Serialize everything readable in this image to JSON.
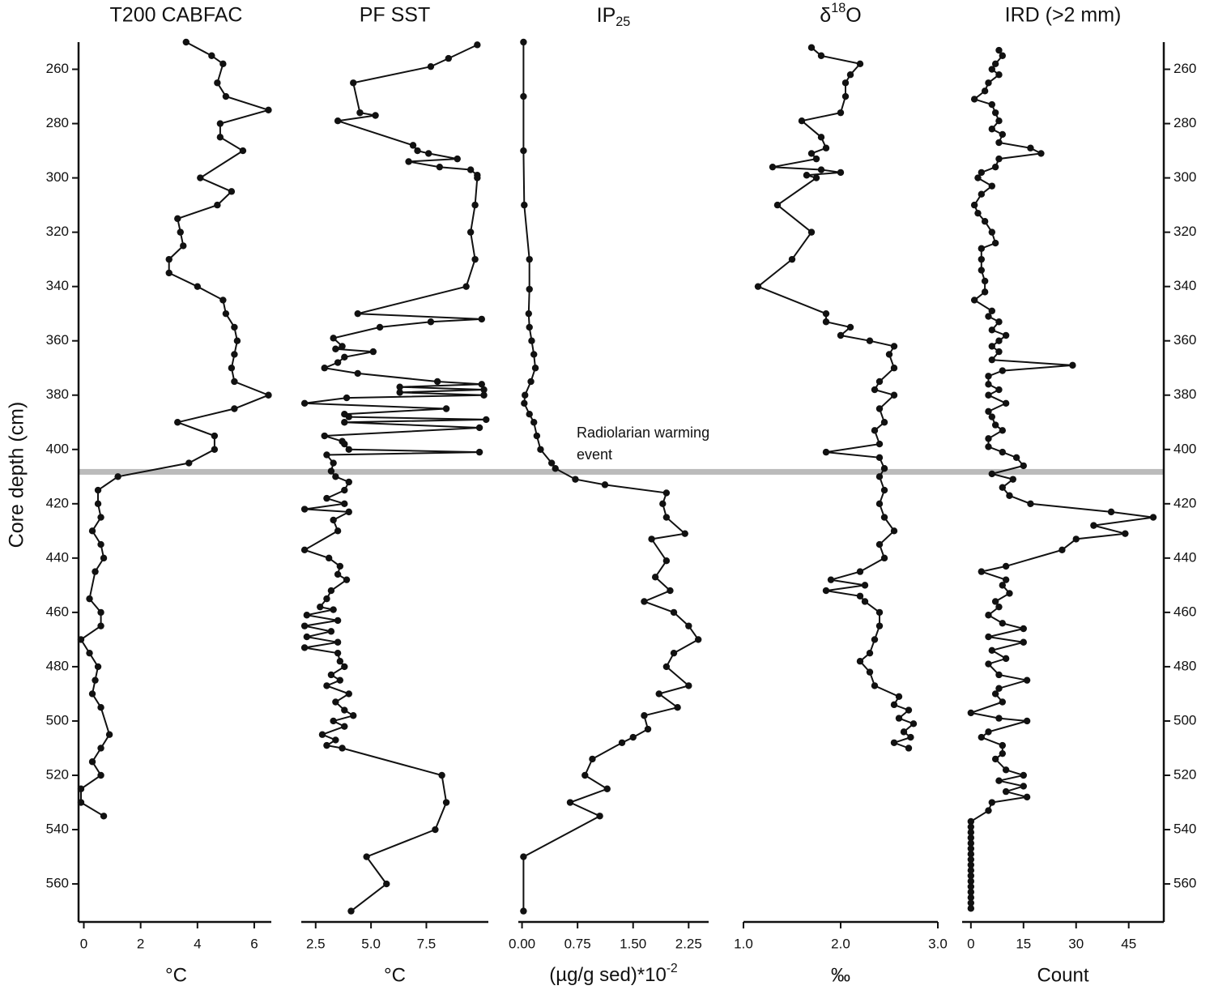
{
  "depth_axis": {
    "label": "Core depth (cm)",
    "ylim": [
      250,
      574
    ],
    "yticks": [
      260,
      280,
      300,
      320,
      340,
      360,
      380,
      400,
      420,
      440,
      460,
      480,
      500,
      520,
      540,
      560
    ]
  },
  "annotation": {
    "text": [
      "Radiolarian warming",
      "event"
    ],
    "band": [
      407.2,
      409.3
    ],
    "color": "#bbbbbb"
  },
  "chart_data": [
    {
      "type": "line",
      "title": "T200 CABFAC",
      "xlabel": "°C",
      "color": "#111111",
      "xlim": [
        -0.1,
        6.6
      ],
      "xticks": [
        0,
        2,
        4,
        6
      ],
      "depth": [
        250,
        255,
        258,
        265,
        270,
        275,
        280,
        285,
        290,
        300,
        305,
        310,
        315,
        320,
        325,
        330,
        335,
        340,
        345,
        350,
        355,
        360,
        365,
        370,
        375,
        380,
        385,
        390,
        395,
        400,
        405,
        410,
        415,
        420,
        425,
        430,
        435,
        440,
        445,
        455,
        460,
        465,
        470,
        475,
        480,
        485,
        490,
        495,
        505,
        510,
        515,
        520,
        525,
        530,
        535
      ],
      "values": [
        3.6,
        4.5,
        4.9,
        4.7,
        5.0,
        6.5,
        4.8,
        4.8,
        5.6,
        4.1,
        5.2,
        4.7,
        3.3,
        3.4,
        3.5,
        3.0,
        3.0,
        4.0,
        4.9,
        5.0,
        5.3,
        5.4,
        5.3,
        5.2,
        5.3,
        6.5,
        5.3,
        3.3,
        4.6,
        4.6,
        3.7,
        1.2,
        0.5,
        0.5,
        0.6,
        0.3,
        0.6,
        0.7,
        0.4,
        0.2,
        0.6,
        0.6,
        -0.1,
        0.2,
        0.5,
        0.4,
        0.3,
        0.6,
        0.9,
        0.6,
        0.3,
        0.6,
        -0.1,
        -0.1,
        0.7
      ]
    },
    {
      "type": "line",
      "title": "PF SST",
      "xlabel": "°C",
      "color": "#111111",
      "xlim": [
        1.85,
        10.3
      ],
      "xticks": [
        2.5,
        {
          "value": 5,
          "label": "5.0"
        },
        7.5
      ],
      "depth": [
        251,
        256,
        259,
        265,
        276,
        277,
        279,
        288,
        290,
        291,
        293,
        294,
        296,
        297,
        299,
        300,
        310,
        320,
        330,
        340,
        350,
        352,
        353,
        355,
        359,
        362,
        363,
        364,
        366,
        368,
        370,
        372,
        375,
        376,
        377,
        378,
        379,
        380,
        381,
        383,
        385,
        387,
        388,
        389,
        390,
        392,
        395,
        397,
        398,
        400,
        401,
        402,
        405,
        408,
        410,
        412,
        415,
        418,
        420,
        422,
        423,
        426,
        430,
        437,
        440,
        443,
        446,
        448,
        452,
        455,
        458,
        459,
        461,
        463,
        465,
        467,
        469,
        471,
        473,
        475,
        478,
        480,
        483,
        485,
        487,
        490,
        493,
        496,
        498,
        500,
        502,
        505,
        507,
        509,
        510,
        520,
        530,
        540,
        550,
        560,
        570
      ],
      "values": [
        9.8,
        8.5,
        7.7,
        4.2,
        4.5,
        5.2,
        3.5,
        6.9,
        7.1,
        7.6,
        8.9,
        6.7,
        8.1,
        9.5,
        9.8,
        9.8,
        9.7,
        9.5,
        9.7,
        9.3,
        4.4,
        10.0,
        7.7,
        5.4,
        3.3,
        3.7,
        3.4,
        5.1,
        3.8,
        3.5,
        2.9,
        4.4,
        8.0,
        10.0,
        6.3,
        10.1,
        6.3,
        10.1,
        3.9,
        2.0,
        8.4,
        3.8,
        4.0,
        10.2,
        3.8,
        9.9,
        2.9,
        3.7,
        3.8,
        4.0,
        9.9,
        3.0,
        3.3,
        3.2,
        3.4,
        4.0,
        3.8,
        3.0,
        3.8,
        2.0,
        4.0,
        3.3,
        3.5,
        2.0,
        3.1,
        3.6,
        3.5,
        3.9,
        3.2,
        3.0,
        2.7,
        3.3,
        2.1,
        3.5,
        2.0,
        3.2,
        2.1,
        3.5,
        2.0,
        3.5,
        3.6,
        3.8,
        3.2,
        3.6,
        3.0,
        4.0,
        3.4,
        3.8,
        4.2,
        3.3,
        3.8,
        2.8,
        3.4,
        3.0,
        3.7,
        8.2,
        8.4,
        7.9,
        4.8,
        5.7,
        4.1
      ]
    },
    {
      "type": "line",
      "title": [
        {
          "text": "IP"
        },
        {
          "text": "25",
          "shift": "sub"
        }
      ],
      "xlabel": [
        {
          "text": "(µg/g sed)*10"
        },
        {
          "text": "-2",
          "shift": "sup"
        }
      ],
      "color": "#111111",
      "xlim": [
        -0.05,
        2.52
      ],
      "xticks": [
        {
          "value": 0,
          "label": "0.00"
        },
        {
          "value": 0.75,
          "label": "0.75"
        },
        {
          "value": 1.5,
          "label": "1.50"
        },
        {
          "value": 2.25,
          "label": "2.25"
        }
      ],
      "depth": [
        250,
        270,
        290,
        310,
        330,
        341,
        350,
        355,
        360,
        365,
        370,
        375,
        380,
        383,
        387,
        390,
        395,
        400,
        405,
        407,
        411,
        413,
        416,
        420,
        425,
        431,
        433,
        441,
        447,
        452,
        456,
        460,
        465,
        470,
        475,
        480,
        487,
        490,
        495,
        498,
        503,
        506,
        508,
        514,
        520,
        525,
        530,
        535,
        550,
        570
      ],
      "values": [
        0.02,
        0.02,
        0.02,
        0.03,
        0.1,
        0.1,
        0.09,
        0.1,
        0.13,
        0.16,
        0.18,
        0.12,
        0.04,
        0.03,
        0.1,
        0.16,
        0.2,
        0.25,
        0.4,
        0.45,
        0.72,
        1.12,
        1.95,
        1.9,
        1.95,
        2.2,
        1.75,
        1.95,
        1.8,
        2.0,
        1.65,
        2.05,
        2.25,
        2.38,
        2.05,
        1.95,
        2.25,
        1.85,
        2.1,
        1.65,
        1.7,
        1.5,
        1.35,
        0.95,
        0.85,
        1.15,
        0.65,
        1.05,
        0.02,
        0.02
      ]
    },
    {
      "type": "line",
      "title": [
        {
          "text": "δ"
        },
        {
          "text": "18",
          "shift": "sup"
        },
        {
          "text": "O"
        }
      ],
      "xlabel": "‰",
      "color": "#111111",
      "xlim": [
        1.0,
        3.0
      ],
      "xticks": [
        {
          "value": 1,
          "label": "1.0"
        },
        {
          "value": 2,
          "label": "2.0"
        },
        {
          "value": 3,
          "label": "3.0"
        }
      ],
      "depth": [
        252,
        255,
        258,
        262,
        265,
        270,
        276,
        279,
        285,
        289,
        291,
        293,
        296,
        297,
        298,
        299,
        300,
        310,
        320,
        330,
        340,
        350,
        353,
        355,
        358,
        360,
        362,
        365,
        370,
        375,
        378,
        380,
        385,
        390,
        393,
        398,
        401,
        403,
        407,
        410,
        415,
        420,
        425,
        430,
        435,
        440,
        445,
        448,
        450,
        452,
        454,
        456,
        460,
        465,
        470,
        475,
        478,
        482,
        487,
        491,
        494,
        496,
        499,
        501,
        504,
        506,
        508,
        510
      ],
      "values": [
        1.7,
        1.8,
        2.2,
        2.1,
        2.05,
        2.05,
        2.0,
        1.6,
        1.8,
        1.85,
        1.7,
        1.75,
        1.3,
        1.8,
        2.0,
        1.65,
        1.75,
        1.35,
        1.7,
        1.5,
        1.15,
        1.85,
        1.85,
        2.1,
        2.0,
        2.3,
        2.55,
        2.5,
        2.55,
        2.4,
        2.35,
        2.55,
        2.4,
        2.45,
        2.35,
        2.4,
        1.85,
        2.4,
        2.45,
        2.4,
        2.45,
        2.4,
        2.45,
        2.55,
        2.4,
        2.45,
        2.2,
        1.9,
        2.25,
        1.85,
        2.2,
        2.25,
        2.4,
        2.4,
        2.35,
        2.3,
        2.2,
        2.3,
        2.35,
        2.6,
        2.55,
        2.7,
        2.6,
        2.75,
        2.65,
        2.72,
        2.55,
        2.7
      ]
    },
    {
      "type": "line",
      "title": "IRD (>2 mm)",
      "xlabel": "Count",
      "color": "#111111",
      "xlim": [
        -2.5,
        55
      ],
      "xticks": [
        0,
        15,
        30,
        45
      ],
      "depth": [
        253,
        255,
        258,
        260,
        262,
        265,
        268,
        271,
        273,
        276,
        279,
        282,
        284,
        287,
        289,
        291,
        293,
        296,
        298,
        300,
        303,
        306,
        310,
        313,
        316,
        320,
        324,
        326,
        330,
        334,
        338,
        342,
        345,
        349,
        351,
        353,
        356,
        358,
        360,
        362,
        364,
        367,
        369,
        371,
        373,
        376,
        378,
        380,
        383,
        386,
        388,
        391,
        393,
        396,
        399,
        401,
        403,
        406,
        409,
        411,
        414,
        417,
        420,
        423,
        425,
        428,
        431,
        433,
        437,
        443,
        445,
        448,
        450,
        453,
        456,
        458,
        461,
        464,
        466,
        469,
        471,
        474,
        477,
        479,
        483,
        485,
        488,
        490,
        493,
        497,
        499,
        500,
        504,
        506,
        509,
        512,
        514,
        518,
        520,
        522,
        524,
        526,
        528,
        530,
        533,
        537,
        539,
        541,
        543,
        545,
        547,
        549,
        551,
        553,
        555,
        557,
        559,
        561,
        563,
        565,
        567,
        569
      ],
      "values": [
        8,
        9,
        7,
        6,
        8,
        5,
        4,
        1,
        6,
        7,
        8,
        6,
        9,
        8,
        17,
        20,
        8,
        7,
        3,
        2,
        6,
        3,
        1,
        2,
        4,
        6,
        7,
        3,
        3,
        3,
        4,
        4,
        1,
        6,
        5,
        8,
        6,
        10,
        8,
        6,
        8,
        6,
        29,
        9,
        5,
        5,
        8,
        5,
        10,
        5,
        6,
        7,
        9,
        5,
        5,
        9,
        13,
        15,
        6,
        12,
        9,
        11,
        17,
        40,
        52,
        35,
        44,
        30,
        26,
        10,
        3,
        10,
        9,
        11,
        7,
        8,
        5,
        9,
        15,
        5,
        15,
        6,
        10,
        5,
        8,
        16,
        8,
        7,
        9,
        0,
        8,
        16,
        5,
        3,
        9,
        9,
        7,
        10,
        15,
        8,
        15,
        10,
        16,
        6,
        5,
        0,
        0,
        0,
        0,
        0,
        0,
        0,
        0,
        0,
        0,
        0,
        0,
        0,
        0,
        0,
        0,
        0
      ]
    }
  ]
}
